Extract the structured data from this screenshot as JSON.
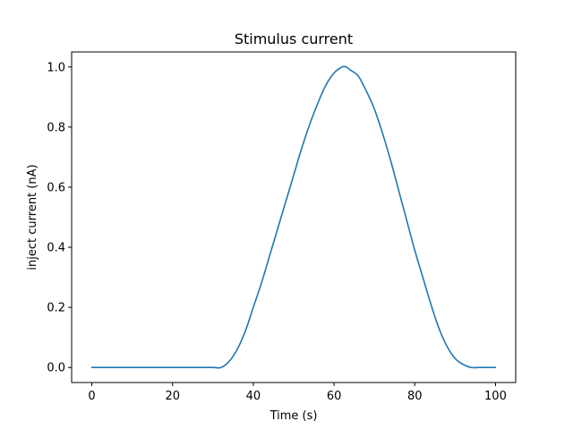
{
  "chart_data": {
    "type": "line",
    "title": "Stimulus current",
    "xlabel": "Time (s)",
    "ylabel": "inject current (nA)",
    "xlim": [
      -5,
      105
    ],
    "ylim": [
      -0.05,
      1.05
    ],
    "xticks": [
      0,
      20,
      40,
      60,
      80,
      100
    ],
    "xtick_labels": [
      "0",
      "20",
      "40",
      "60",
      "80",
      "100"
    ],
    "yticks": [
      0.0,
      0.2,
      0.4,
      0.6,
      0.8,
      1.0
    ],
    "ytick_labels": [
      "0.0",
      "0.2",
      "0.4",
      "0.6",
      "0.8",
      "1.0"
    ],
    "grid": false,
    "legend": "none",
    "series": [
      {
        "color": "#1f77b4",
        "x": [
          0,
          5,
          10,
          15,
          20,
          25,
          30,
          32,
          34,
          36,
          38,
          40,
          42,
          44,
          46,
          48,
          50,
          52,
          54,
          56,
          58,
          60,
          62,
          63,
          64,
          66,
          68,
          70,
          72,
          74,
          76,
          78,
          80,
          82,
          84,
          86,
          88,
          90,
          92,
          94,
          96,
          98,
          100
        ],
        "y": [
          0.0,
          0.0,
          0.0,
          0.0,
          0.0,
          0.0,
          0.0,
          0.0,
          0.02,
          0.06,
          0.12,
          0.2,
          0.28,
          0.37,
          0.46,
          0.55,
          0.64,
          0.73,
          0.81,
          0.88,
          0.94,
          0.98,
          1.0,
          1.0,
          0.99,
          0.97,
          0.92,
          0.86,
          0.78,
          0.69,
          0.59,
          0.49,
          0.39,
          0.3,
          0.21,
          0.13,
          0.07,
          0.03,
          0.01,
          0.0,
          0.0,
          0.0,
          0.0
        ]
      }
    ]
  }
}
